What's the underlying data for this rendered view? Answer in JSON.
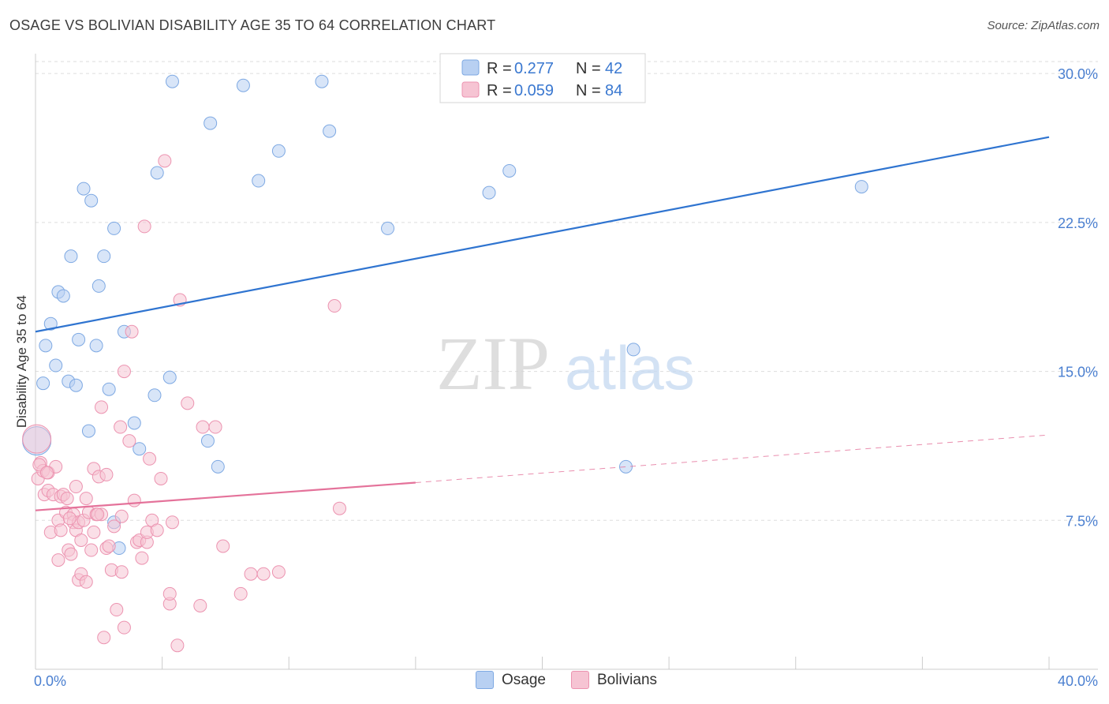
{
  "title": "OSAGE VS BOLIVIAN DISABILITY AGE 35 TO 64 CORRELATION CHART",
  "source": "Source: ZipAtlas.com",
  "watermark": {
    "zip": "ZIP",
    "atlas": "atlas"
  },
  "legend": {
    "r_label": "R = ",
    "n_label": "N = ",
    "rows": [
      {
        "r": "0.277",
        "n": "42"
      },
      {
        "r": "0.059",
        "n": "84"
      }
    ]
  },
  "bottom_legend": {
    "osage": "Osage",
    "bolivians": "Bolivians"
  },
  "colors": {
    "osage_fill": "#b8d0f2",
    "osage_stroke": "#7ea9e3",
    "osage_line": "#2f74d0",
    "bol_fill": "#f6c4d3",
    "bol_stroke": "#ec93b0",
    "bol_line": "#e4729a",
    "tick_text": "#4a7fd0",
    "grid": "#dddddd"
  },
  "chart_data": {
    "type": "scatter",
    "title": "OSAGE VS BOLIVIAN DISABILITY AGE 35 TO 64 CORRELATION CHART",
    "xlabel": "",
    "ylabel": "Disability Age 35 to 64",
    "xlim": [
      0,
      40
    ],
    "ylim": [
      0,
      31
    ],
    "x_tick_labels": [
      "0.0%",
      "40.0%"
    ],
    "y_ticks": [
      7.5,
      15.0,
      22.5,
      30.0
    ],
    "y_tick_labels": [
      "7.5%",
      "15.0%",
      "22.5%",
      "30.0%"
    ],
    "grid": true,
    "series": [
      {
        "name": "Osage",
        "R": 0.277,
        "N": 42,
        "trend": {
          "x": [
            0,
            40
          ],
          "y": [
            17.0,
            26.8
          ],
          "style": "solid"
        },
        "points": [
          [
            0.05,
            11.5
          ],
          [
            0.3,
            14.4
          ],
          [
            0.4,
            16.3
          ],
          [
            0.6,
            17.4
          ],
          [
            0.8,
            15.3
          ],
          [
            0.9,
            19.0
          ],
          [
            1.1,
            18.8
          ],
          [
            1.3,
            14.5
          ],
          [
            1.4,
            20.8
          ],
          [
            1.6,
            14.3
          ],
          [
            1.7,
            16.6
          ],
          [
            1.9,
            24.2
          ],
          [
            2.1,
            12.0
          ],
          [
            2.2,
            23.6
          ],
          [
            2.4,
            16.3
          ],
          [
            2.5,
            19.3
          ],
          [
            2.7,
            20.8
          ],
          [
            2.9,
            14.1
          ],
          [
            3.1,
            22.2
          ],
          [
            3.1,
            7.4
          ],
          [
            3.3,
            6.1
          ],
          [
            3.5,
            17.0
          ],
          [
            3.9,
            12.4
          ],
          [
            4.1,
            11.1
          ],
          [
            4.7,
            13.8
          ],
          [
            4.8,
            25.0
          ],
          [
            5.3,
            14.7
          ],
          [
            5.4,
            29.6
          ],
          [
            6.8,
            11.5
          ],
          [
            6.9,
            27.5
          ],
          [
            7.2,
            10.2
          ],
          [
            8.2,
            29.4
          ],
          [
            8.8,
            24.6
          ],
          [
            9.6,
            26.1
          ],
          [
            11.3,
            29.6
          ],
          [
            11.6,
            27.1
          ],
          [
            13.9,
            22.2
          ],
          [
            17.9,
            24.0
          ],
          [
            18.7,
            25.1
          ],
          [
            23.3,
            10.2
          ],
          [
            23.6,
            16.1
          ],
          [
            32.6,
            24.3
          ]
        ]
      },
      {
        "name": "Bolivians",
        "R": 0.059,
        "N": 84,
        "trend": {
          "x": [
            0,
            15
          ],
          "y": [
            8.0,
            9.4
          ],
          "style": "solid",
          "dashed_extension": {
            "x": [
              15,
              40
            ],
            "y": [
              9.4,
              11.8
            ]
          }
        },
        "points": [
          [
            0.05,
            11.6
          ],
          [
            0.1,
            9.6
          ],
          [
            0.2,
            10.4
          ],
          [
            0.3,
            10.0
          ],
          [
            0.35,
            8.8
          ],
          [
            0.5,
            9.0
          ],
          [
            0.5,
            9.9
          ],
          [
            0.6,
            6.9
          ],
          [
            0.7,
            8.8
          ],
          [
            0.8,
            10.2
          ],
          [
            0.9,
            7.5
          ],
          [
            0.9,
            5.5
          ],
          [
            1.0,
            8.7
          ],
          [
            1.0,
            7.0
          ],
          [
            1.1,
            8.8
          ],
          [
            1.2,
            7.9
          ],
          [
            1.25,
            8.6
          ],
          [
            1.3,
            6.0
          ],
          [
            1.4,
            5.8
          ],
          [
            1.5,
            7.8
          ],
          [
            1.5,
            7.4
          ],
          [
            1.6,
            9.2
          ],
          [
            1.6,
            7.0
          ],
          [
            1.7,
            7.4
          ],
          [
            1.7,
            4.5
          ],
          [
            1.8,
            4.8
          ],
          [
            1.8,
            6.5
          ],
          [
            1.9,
            7.5
          ],
          [
            2.0,
            8.6
          ],
          [
            2.0,
            4.4
          ],
          [
            2.1,
            7.9
          ],
          [
            2.2,
            6.0
          ],
          [
            2.3,
            6.9
          ],
          [
            2.3,
            10.1
          ],
          [
            2.4,
            7.8
          ],
          [
            2.5,
            9.7
          ],
          [
            2.6,
            7.8
          ],
          [
            2.6,
            13.2
          ],
          [
            2.7,
            1.6
          ],
          [
            2.8,
            6.1
          ],
          [
            2.8,
            9.8
          ],
          [
            2.9,
            6.2
          ],
          [
            3.0,
            5.0
          ],
          [
            3.1,
            7.2
          ],
          [
            3.2,
            3.0
          ],
          [
            3.35,
            12.2
          ],
          [
            3.4,
            7.7
          ],
          [
            3.4,
            4.9
          ],
          [
            3.5,
            15.0
          ],
          [
            3.5,
            2.1
          ],
          [
            3.7,
            11.5
          ],
          [
            3.8,
            17.0
          ],
          [
            3.9,
            8.5
          ],
          [
            4.0,
            6.4
          ],
          [
            4.1,
            6.5
          ],
          [
            4.2,
            5.6
          ],
          [
            4.3,
            22.3
          ],
          [
            4.4,
            6.4
          ],
          [
            4.4,
            6.9
          ],
          [
            4.5,
            10.6
          ],
          [
            4.6,
            7.5
          ],
          [
            4.8,
            7.0
          ],
          [
            4.95,
            9.6
          ],
          [
            5.1,
            25.6
          ],
          [
            5.3,
            3.3
          ],
          [
            5.3,
            3.8
          ],
          [
            5.4,
            7.4
          ],
          [
            5.6,
            1.2
          ],
          [
            5.7,
            18.6
          ],
          [
            6.0,
            13.4
          ],
          [
            6.5,
            3.2
          ],
          [
            6.6,
            12.2
          ],
          [
            7.1,
            12.2
          ],
          [
            7.4,
            6.2
          ],
          [
            8.1,
            3.8
          ],
          [
            8.5,
            4.8
          ],
          [
            9.0,
            4.8
          ],
          [
            9.6,
            4.9
          ],
          [
            11.8,
            18.3
          ],
          [
            12.0,
            8.1
          ],
          [
            0.15,
            10.3
          ],
          [
            0.45,
            9.9
          ],
          [
            1.35,
            7.6
          ],
          [
            2.45,
            7.8
          ]
        ]
      }
    ]
  }
}
